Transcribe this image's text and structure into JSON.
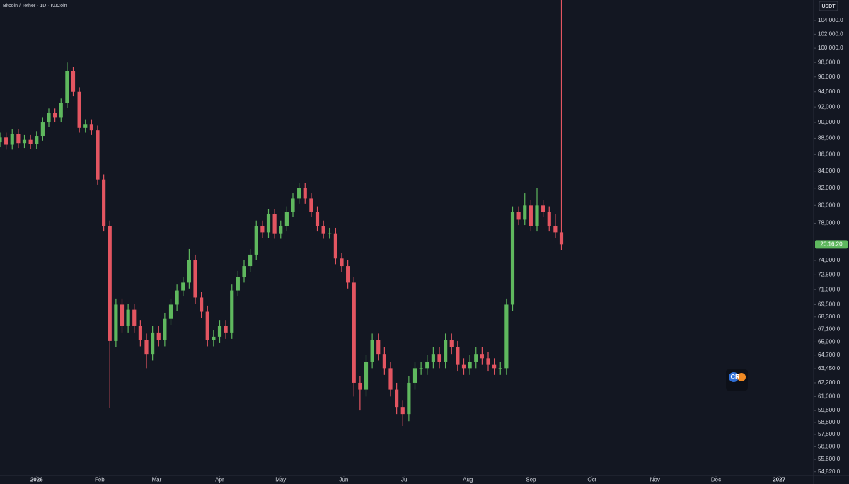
{
  "chart_data": {
    "type": "candlestick",
    "title": "Bitcoin / Tether · 1D · KuCoin",
    "currency": "USDT",
    "countdown": "20:16:20",
    "watermark": "CR",
    "up_color": "#5fb85e",
    "down_color": "#e35561",
    "log_scale": true,
    "grid": false,
    "xlim": [
      0,
      400
    ],
    "xticks": [
      {
        "value": 18,
        "label": "2026"
      },
      {
        "value": 49,
        "label": "Feb"
      },
      {
        "value": 77,
        "label": "Mar"
      },
      {
        "value": 108,
        "label": "Apr"
      },
      {
        "value": 138,
        "label": "May"
      },
      {
        "value": 169,
        "label": "Jun"
      },
      {
        "value": 199,
        "label": "Jul"
      },
      {
        "value": 230,
        "label": "Aug"
      },
      {
        "value": 261,
        "label": "Sep"
      },
      {
        "value": 291,
        "label": "Oct"
      },
      {
        "value": 322,
        "label": "Nov"
      },
      {
        "value": 352,
        "label": "Dec"
      },
      {
        "value": 383,
        "label": "2027"
      }
    ],
    "ylim": [
      54530,
      107080
    ],
    "yticks": [
      {
        "value": 54820,
        "label": "54,820.0"
      },
      {
        "value": 55800,
        "label": "55,800.0"
      },
      {
        "value": 56800,
        "label": "56,800.0"
      },
      {
        "value": 57800,
        "label": "57,800.0"
      },
      {
        "value": 58800,
        "label": "58,800.0"
      },
      {
        "value": 59800,
        "label": "59,800.0"
      },
      {
        "value": 61000,
        "label": "61,000.0"
      },
      {
        "value": 62200,
        "label": "62,200.0"
      },
      {
        "value": 63450,
        "label": "63,450.0"
      },
      {
        "value": 64700,
        "label": "64,700.0"
      },
      {
        "value": 65900,
        "label": "65,900.0"
      },
      {
        "value": 67100,
        "label": "67,100.0"
      },
      {
        "value": 68300,
        "label": "68,300.0"
      },
      {
        "value": 69500,
        "label": "69,500.0"
      },
      {
        "value": 71000,
        "label": "71,000.0"
      },
      {
        "value": 72500,
        "label": "72,500.0"
      },
      {
        "value": 74000,
        "label": "74,000.0"
      },
      {
        "value": 78000,
        "label": "78,000.0"
      },
      {
        "value": 80000,
        "label": "80,000.0"
      },
      {
        "value": 82000,
        "label": "82,000.0"
      },
      {
        "value": 84000,
        "label": "84,000.0"
      },
      {
        "value": 86000,
        "label": "86,000.0"
      },
      {
        "value": 88000,
        "label": "88,000.0"
      },
      {
        "value": 90000,
        "label": "90,000.0"
      },
      {
        "value": 92000,
        "label": "92,000.0"
      },
      {
        "value": 94000,
        "label": "94,000.0"
      },
      {
        "value": 96000,
        "label": "96,000.0"
      },
      {
        "value": 98000,
        "label": "98,000.0"
      },
      {
        "value": 100000,
        "label": "100,000.0"
      },
      {
        "value": 102000,
        "label": "102,000.0"
      },
      {
        "value": 104000,
        "label": "104,000.0"
      }
    ],
    "x": [
      0,
      3,
      6,
      9,
      12,
      15,
      18,
      21,
      24,
      27,
      30,
      33,
      36,
      39,
      42,
      45,
      48,
      51,
      54,
      57,
      60,
      63,
      66,
      69,
      72,
      75,
      78,
      81,
      84,
      87,
      90,
      93,
      96,
      99,
      102,
      105,
      108,
      111,
      114,
      117,
      120,
      123,
      126,
      129,
      132,
      135,
      138,
      141,
      144,
      147,
      150,
      153,
      156,
      159,
      162,
      165,
      168,
      171,
      174,
      177,
      180,
      183,
      186,
      189,
      192,
      195,
      198,
      201,
      204,
      207,
      210,
      213,
      216,
      219,
      222,
      225,
      228,
      231,
      234,
      237,
      240,
      243,
      246,
      249,
      252,
      255,
      258,
      261,
      264,
      267,
      270,
      273,
      276
    ],
    "open": [
      87500,
      88100,
      87200,
      88500,
      87400,
      87800,
      87300,
      88300,
      90000,
      91200,
      90600,
      92500,
      96800,
      94000,
      89300,
      89800,
      89000,
      83000,
      77700,
      66000,
      69500,
      67400,
      69000,
      67400,
      66100,
      64800,
      66800,
      66100,
      68100,
      69500,
      70900,
      71700,
      74000,
      70200,
      68800,
      66100,
      66400,
      67400,
      66800,
      70900,
      72300,
      73400,
      74600,
      77700,
      77000,
      79000,
      76900,
      77700,
      79300,
      80800,
      82000,
      80800,
      79300,
      77700,
      76900,
      76900,
      74200,
      73400,
      71700,
      62200,
      61600,
      64100,
      66100,
      64800,
      63500,
      61600,
      60100,
      59500,
      62200,
      63500,
      63500,
      64100,
      64800,
      64100,
      66100,
      65400,
      63800,
      63500,
      64100,
      64800,
      64400,
      63800,
      63500,
      63500,
      69500,
      79300,
      78400,
      80000,
      77700,
      80000,
      79300,
      77700,
      77000
    ],
    "high": [
      88700,
      88700,
      89100,
      89100,
      88400,
      88400,
      88900,
      90600,
      91800,
      91800,
      93100,
      98000,
      97400,
      94600,
      90400,
      90400,
      89600,
      83600,
      78300,
      70100,
      70100,
      69600,
      69600,
      68000,
      66700,
      67400,
      67400,
      68700,
      70100,
      71500,
      72300,
      75200,
      74600,
      70800,
      69400,
      67000,
      68000,
      68000,
      71500,
      72900,
      74000,
      75200,
      78300,
      78300,
      79600,
      79600,
      78300,
      79900,
      81400,
      82600,
      82600,
      81400,
      79900,
      78300,
      77500,
      77500,
      74800,
      74000,
      72300,
      62800,
      64700,
      66700,
      66700,
      65400,
      64100,
      62200,
      60700,
      62800,
      64100,
      64100,
      64700,
      65400,
      65400,
      66700,
      66700,
      66000,
      64400,
      64700,
      65400,
      65400,
      65000,
      64400,
      64100,
      70100,
      79900,
      79900,
      81400,
      80600,
      82000,
      80600,
      79900,
      79000,
      110000
    ],
    "low": [
      86900,
      86600,
      86600,
      86800,
      86800,
      86700,
      86700,
      87700,
      89400,
      90000,
      90000,
      91900,
      93400,
      88700,
      88700,
      88400,
      82400,
      77100,
      60000,
      65400,
      66800,
      66800,
      66800,
      65500,
      63500,
      64200,
      65500,
      65500,
      67500,
      68900,
      70300,
      71100,
      69600,
      68200,
      65500,
      65500,
      65800,
      66200,
      66200,
      70300,
      71700,
      72800,
      74000,
      76400,
      76400,
      76300,
      76300,
      77100,
      78700,
      80200,
      80200,
      78700,
      77100,
      76300,
      76300,
      73600,
      72800,
      71100,
      61000,
      59800,
      61000,
      63500,
      64200,
      62900,
      61000,
      59500,
      58500,
      58900,
      61600,
      62900,
      62900,
      63500,
      63500,
      63500,
      64800,
      63200,
      62900,
      62900,
      63500,
      63800,
      63200,
      62900,
      62900,
      62900,
      68900,
      77800,
      77800,
      77100,
      77100,
      78700,
      77100,
      76400,
      75100
    ],
    "close": [
      88100,
      87200,
      88500,
      87400,
      87800,
      87300,
      88300,
      90000,
      91200,
      90600,
      92500,
      96800,
      94000,
      89300,
      89800,
      89000,
      83000,
      77700,
      66000,
      69500,
      67400,
      69000,
      67400,
      66100,
      64800,
      66800,
      66100,
      68100,
      69500,
      70900,
      71700,
      74000,
      70200,
      68800,
      66100,
      66400,
      67400,
      66800,
      70900,
      72300,
      73400,
      74600,
      77700,
      77000,
      79000,
      76900,
      77700,
      79300,
      80800,
      82000,
      80800,
      79300,
      77700,
      76900,
      76900,
      74200,
      73400,
      71700,
      62200,
      61600,
      64100,
      66100,
      64800,
      63500,
      61600,
      60100,
      59500,
      62200,
      63500,
      63500,
      64100,
      64800,
      64100,
      66100,
      65400,
      63800,
      63500,
      64100,
      64800,
      64400,
      63800,
      63500,
      63500,
      69500,
      79300,
      78400,
      80000,
      77700,
      80000,
      79300,
      77700,
      77000,
      75700
    ]
  }
}
